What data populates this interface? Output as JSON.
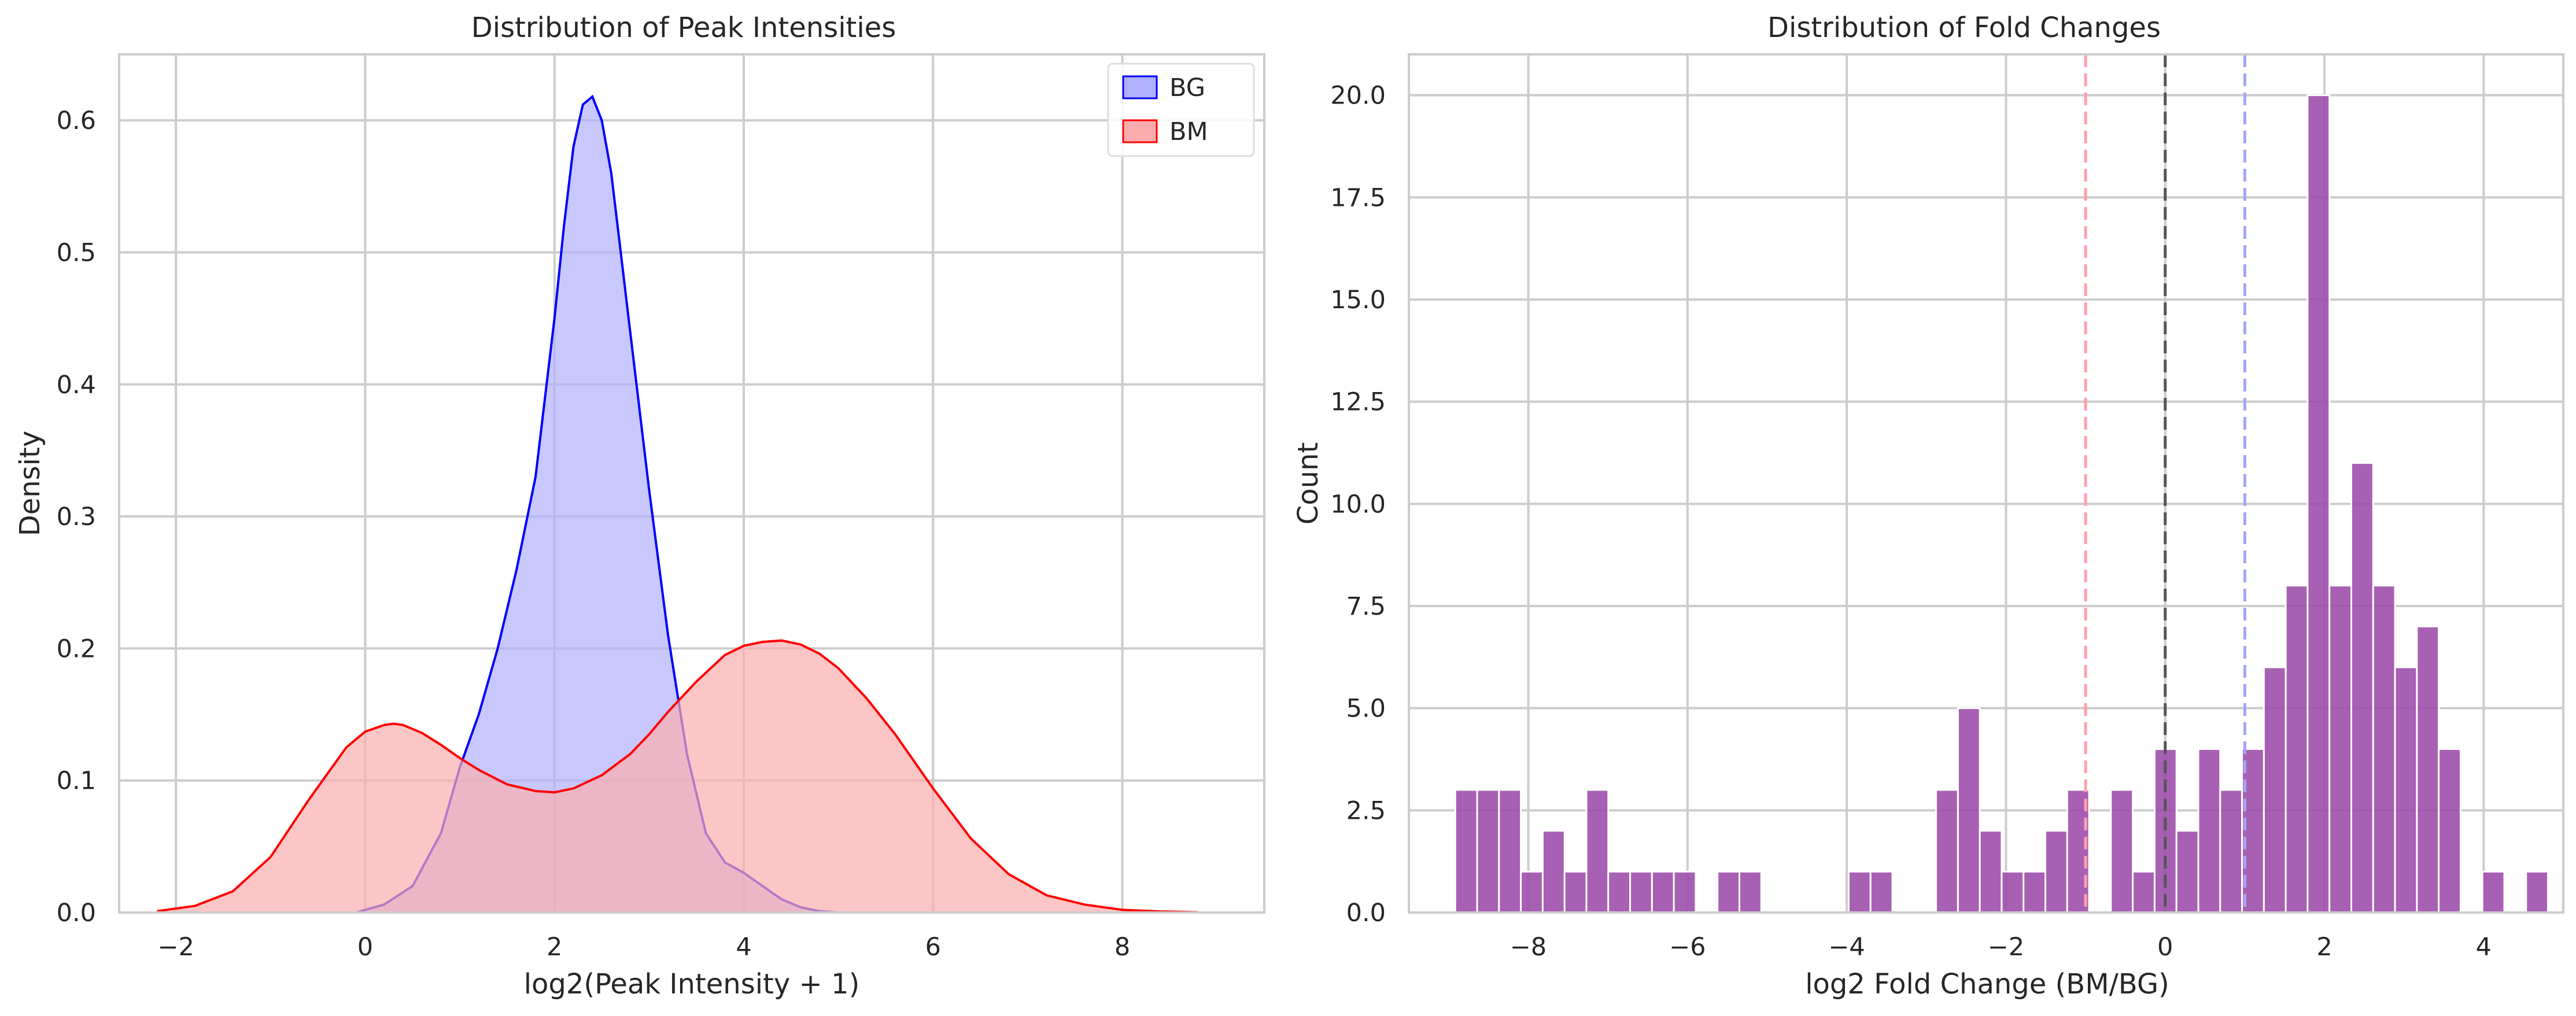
{
  "chart_data": [
    {
      "type": "area",
      "title": "Distribution of Peak Intensities",
      "xlabel": "log2(Peak Intensity + 1)",
      "ylabel": "Density",
      "xlim": [
        -2.6,
        9.5
      ],
      "ylim": [
        0,
        0.65
      ],
      "xticks": [
        -2,
        0,
        2,
        4,
        6,
        8
      ],
      "xtick_labels": [
        "−2",
        "0",
        "2",
        "4",
        "6",
        "8"
      ],
      "yticks": [
        0.0,
        0.1,
        0.2,
        0.3,
        0.4,
        0.5,
        0.6
      ],
      "ytick_labels": [
        "0.0",
        "0.1",
        "0.2",
        "0.3",
        "0.4",
        "0.5",
        "0.6"
      ],
      "grid": true,
      "legend": "top-right",
      "series": [
        {
          "name": "BG",
          "line_color": "#0000ff",
          "fill_color": "#b1b1fe",
          "x": [
            -0.1,
            0.2,
            0.5,
            0.8,
            1.0,
            1.2,
            1.4,
            1.6,
            1.8,
            2.0,
            2.1,
            2.2,
            2.3,
            2.4,
            2.5,
            2.6,
            2.7,
            2.8,
            3.0,
            3.2,
            3.4,
            3.6,
            3.8,
            4.0,
            4.2,
            4.4,
            4.6,
            4.8,
            5.0
          ],
          "y": [
            0.0,
            0.006,
            0.02,
            0.06,
            0.11,
            0.15,
            0.2,
            0.26,
            0.33,
            0.45,
            0.52,
            0.58,
            0.612,
            0.618,
            0.6,
            0.56,
            0.5,
            0.44,
            0.32,
            0.21,
            0.12,
            0.06,
            0.038,
            0.03,
            0.02,
            0.01,
            0.004,
            0.001,
            0.0
          ]
        },
        {
          "name": "BM",
          "line_color": "#ff0000",
          "fill_color": "#fcaeae",
          "x": [
            -2.2,
            -1.8,
            -1.4,
            -1.0,
            -0.6,
            -0.2,
            0.0,
            0.2,
            0.3,
            0.4,
            0.6,
            0.8,
            1.0,
            1.2,
            1.5,
            1.8,
            2.0,
            2.2,
            2.5,
            2.8,
            3.0,
            3.2,
            3.5,
            3.8,
            4.0,
            4.2,
            4.4,
            4.6,
            4.8,
            5.0,
            5.3,
            5.6,
            6.0,
            6.4,
            6.8,
            7.2,
            7.6,
            8.0,
            8.4,
            8.8
          ],
          "y": [
            0.001,
            0.005,
            0.016,
            0.042,
            0.085,
            0.125,
            0.137,
            0.142,
            0.143,
            0.142,
            0.136,
            0.127,
            0.117,
            0.108,
            0.097,
            0.092,
            0.091,
            0.094,
            0.104,
            0.12,
            0.135,
            0.152,
            0.175,
            0.195,
            0.202,
            0.205,
            0.206,
            0.203,
            0.196,
            0.185,
            0.162,
            0.135,
            0.094,
            0.056,
            0.029,
            0.013,
            0.006,
            0.002,
            0.0008,
            0.0002
          ]
        }
      ]
    },
    {
      "type": "bar",
      "title": "Distribution of Fold Changes",
      "xlabel": "log2 Fold Change (BM/BG)",
      "ylabel": "Count",
      "xlim": [
        -9.5,
        5.0
      ],
      "ylim": [
        0,
        21
      ],
      "xticks": [
        -8,
        -6,
        -4,
        -2,
        0,
        2,
        4
      ],
      "xtick_labels": [
        "−8",
        "−6",
        "−4",
        "−2",
        "0",
        "2",
        "4"
      ],
      "yticks": [
        0.0,
        2.5,
        5.0,
        7.5,
        10.0,
        12.5,
        15.0,
        17.5,
        20.0
      ],
      "ytick_labels": [
        "0.0",
        "2.5",
        "5.0",
        "7.5",
        "10.0",
        "12.5",
        "15.0",
        "17.5",
        "20.0"
      ],
      "grid": true,
      "bar_color": "#9b4aa8",
      "bin_start": -8.917,
      "bin_width": 0.2745,
      "counts": [
        3,
        3,
        3,
        1,
        2,
        1,
        3,
        1,
        1,
        1,
        1,
        0,
        1,
        1,
        0,
        0,
        0,
        0,
        1,
        1,
        0,
        0,
        3,
        5,
        2,
        1,
        1,
        2,
        3,
        0,
        3,
        1,
        4,
        2,
        4,
        3,
        4,
        6,
        8,
        20,
        8,
        11,
        8,
        6,
        7,
        4,
        0,
        1,
        0,
        1
      ],
      "vlines": [
        {
          "x": -1.0,
          "color": "#ffa0ab",
          "style": "dashed"
        },
        {
          "x": 0.0,
          "color": "#555555",
          "style": "dashed"
        },
        {
          "x": 1.0,
          "color": "#a4a4f8",
          "style": "dashed"
        }
      ]
    }
  ]
}
